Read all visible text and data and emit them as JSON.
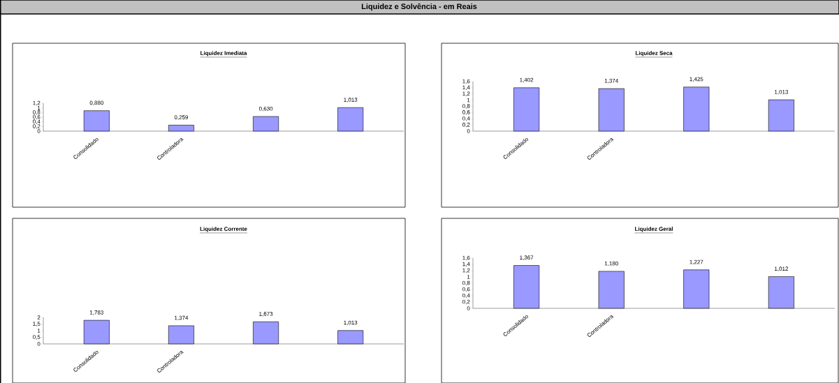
{
  "chart_data": [
    {
      "type": "bar",
      "title": "Liquidez Imediata",
      "annotations": [
        "Liquidez e Solvência - em Reais"
      ],
      "categories": [
        "Consolidado",
        "Controladora",
        null,
        null
      ],
      "values": [
        0.88,
        0.259,
        0.63,
        1.013
      ],
      "value_labels": [
        "0,880",
        "0,259",
        "0,630",
        "1,013"
      ],
      "color": "#9999ff",
      "ylim": [
        0,
        1.2
      ],
      "yticks": [
        0,
        {
          "value": 0.2,
          "label": "0,2"
        },
        {
          "value": 0.4,
          "label": "0,4"
        },
        {
          "value": 0.6,
          "label": "0,6"
        },
        {
          "value": 0.8,
          "label": "0,8"
        },
        1,
        {
          "value": 1.2,
          "label": "1,2"
        }
      ]
    },
    {
      "type": "bar",
      "title": "Liquidez Seca",
      "categories": [
        "Consolidado",
        "Controladora",
        null,
        null
      ],
      "values": [
        1.402,
        1.374,
        1.425,
        1.013
      ],
      "value_labels": [
        "1,402",
        "1,374",
        "1,425",
        "1,013"
      ],
      "color": "#9999ff",
      "ylim": [
        0,
        1.6
      ],
      "yticks": [
        0,
        {
          "value": 0.2,
          "label": "0,2"
        },
        {
          "value": 0.4,
          "label": "0,4"
        },
        {
          "value": 0.6,
          "label": "0,6"
        },
        {
          "value": 0.8,
          "label": "0,8"
        },
        1,
        {
          "value": 1.2,
          "label": "1,2"
        },
        {
          "value": 1.4,
          "label": "1,4"
        },
        {
          "value": 1.6,
          "label": "1,6"
        }
      ]
    },
    {
      "type": "bar",
      "title": "Liquidez Corrente",
      "categories": [
        "Consolidado",
        "Controladora",
        null,
        null
      ],
      "values": [
        1.783,
        1.374,
        1.673,
        1.013
      ],
      "value_labels": [
        "1,783",
        "1,374",
        "1,673",
        "1,013"
      ],
      "color": "#9999ff",
      "ylim": [
        0,
        2
      ],
      "yticks": [
        0,
        {
          "value": 0.5,
          "label": "0,5"
        },
        1,
        {
          "value": 1.5,
          "label": "1,5"
        },
        2
      ]
    },
    {
      "type": "bar",
      "title": "Liquidez Geral",
      "categories": [
        "Consolidado",
        "Controladora",
        null,
        null
      ],
      "values": [
        1.367,
        1.18,
        1.227,
        1.012
      ],
      "value_labels": [
        "1,367",
        "1,180",
        "1,227",
        "1,012"
      ],
      "color": "#9999ff",
      "ylim": [
        0,
        1.6
      ],
      "yticks": [
        0,
        {
          "value": 0.2,
          "label": "0,2"
        },
        {
          "value": 0.4,
          "label": "0,4"
        },
        {
          "value": 0.6,
          "label": "0,6"
        },
        {
          "value": 0.8,
          "label": "0,8"
        },
        1,
        {
          "value": 1.2,
          "label": "1,2"
        },
        {
          "value": 1.4,
          "label": "1,4"
        },
        {
          "value": 1.6,
          "label": "1,6"
        }
      ]
    }
  ]
}
